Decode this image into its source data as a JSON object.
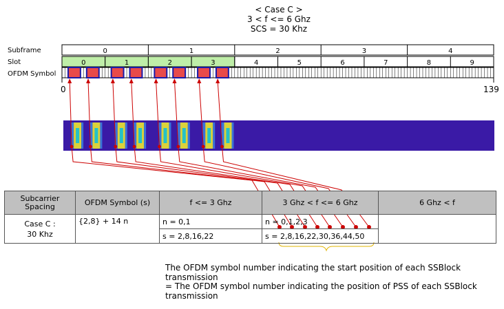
{
  "title": {
    "line1": "< Case C >",
    "line2": "3 < f <= 6 Ghz",
    "line3": "SCS = 30 Khz"
  },
  "row_labels": {
    "subframe": "Subframe",
    "slot": "Slot",
    "symbol": "OFDM Symbol"
  },
  "subframes": [
    "0",
    "1",
    "2",
    "3",
    "4"
  ],
  "slots": [
    "0",
    "1",
    "2",
    "3",
    "4",
    "5",
    "6",
    "7",
    "8",
    "9"
  ],
  "highlighted_slots": 4,
  "symbol_axis": {
    "start": "0",
    "end": "139"
  },
  "ssb_start_symbols": [
    2,
    8,
    16,
    22,
    30,
    36,
    44,
    50
  ],
  "colors": {
    "slot_highlight": "#bfeea8",
    "ssb_block": "#e84a4a",
    "ssb_border": "#1a1aa8",
    "zoom_band": "#3a1aa6",
    "ssb_yellow": "#dbd23a",
    "ssb_cyan": "#25c2c6",
    "arrow": "#cc0000"
  },
  "table": {
    "headers": [
      "Subcarrier Spacing",
      "OFDM Symbol (s)",
      "f <= 3 Ghz",
      "3 Ghz < f <= 6 Ghz",
      "6 Ghz < f"
    ],
    "case_label": "Case C :",
    "case_scs": "30 Khz",
    "symbol_formula": "{2,8} + 14 n",
    "n_low": "n = 0,1",
    "s_low": "s = 2,8,16,22",
    "n_mid": "n = 0,1,2,3",
    "s_mid": "s = 2,8,16,22,30,36,44,50"
  },
  "note": {
    "line1": "The OFDM symbol number indicating the start position of each SSBlock",
    "line2": "transmission",
    "line3": "= The OFDM symbol number indicating the position of PSS of each SSBlock",
    "line4": "transmission"
  }
}
